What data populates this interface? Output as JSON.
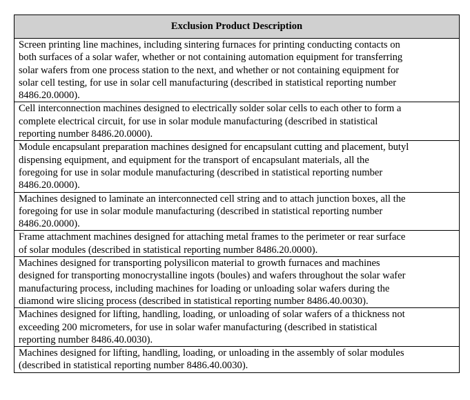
{
  "table": {
    "header": "Exclusion Product Description",
    "rows": [
      {
        "lines": [
          "Screen printing line machines, including sintering furnaces for printing conducting contacts on",
          "both surfaces of a solar wafer, whether or not containing automation equipment for transferring",
          "solar wafers from one process station to the next, and whether or not containing equipment for",
          "solar cell testing, for use in solar cell manufacturing (described in statistical reporting number",
          "8486.20.0000)."
        ]
      },
      {
        "lines": [
          "Cell interconnection machines designed to electrically solder solar cells to each other to form a",
          "complete electrical circuit, for use in solar module manufacturing (described in statistical",
          "reporting number 8486.20.0000)."
        ]
      },
      {
        "lines": [
          "Module encapsulant preparation machines designed for encapsulant cutting and placement, butyl",
          "dispensing equipment, and equipment for the transport of encapsulant materials, all the",
          "foregoing for use in solar module manufacturing (described in statistical reporting number",
          "8486.20.0000)."
        ]
      },
      {
        "lines": [
          "Machines designed to laminate an interconnected cell string and to attach junction boxes, all the",
          "foregoing for use in solar module manufacturing (described in statistical reporting number",
          "8486.20.0000)."
        ]
      },
      {
        "lines": [
          "Frame attachment machines designed for attaching metal frames to the perimeter or rear surface",
          "of solar modules (described in statistical reporting number 8486.20.0000)."
        ]
      },
      {
        "lines": [
          "Machines designed for transporting polysilicon material to growth furnaces and machines",
          "designed for transporting monocrystalline ingots (boules) and wafers throughout the solar wafer",
          "manufacturing process, including machines for loading or unloading solar wafers during the",
          "diamond wire slicing process (described in statistical reporting number 8486.40.0030)."
        ]
      },
      {
        "lines": [
          "Machines designed for lifting, handling, loading, or unloading of solar wafers of a thickness not",
          "exceeding 200 micrometers, for use in solar wafer manufacturing (described in statistical",
          "reporting number 8486.40.0030)."
        ]
      },
      {
        "lines": [
          "Machines designed for lifting, handling, loading, or unloading in the assembly of solar modules",
          "(described in statistical reporting number 8486.40.0030)."
        ]
      }
    ]
  }
}
